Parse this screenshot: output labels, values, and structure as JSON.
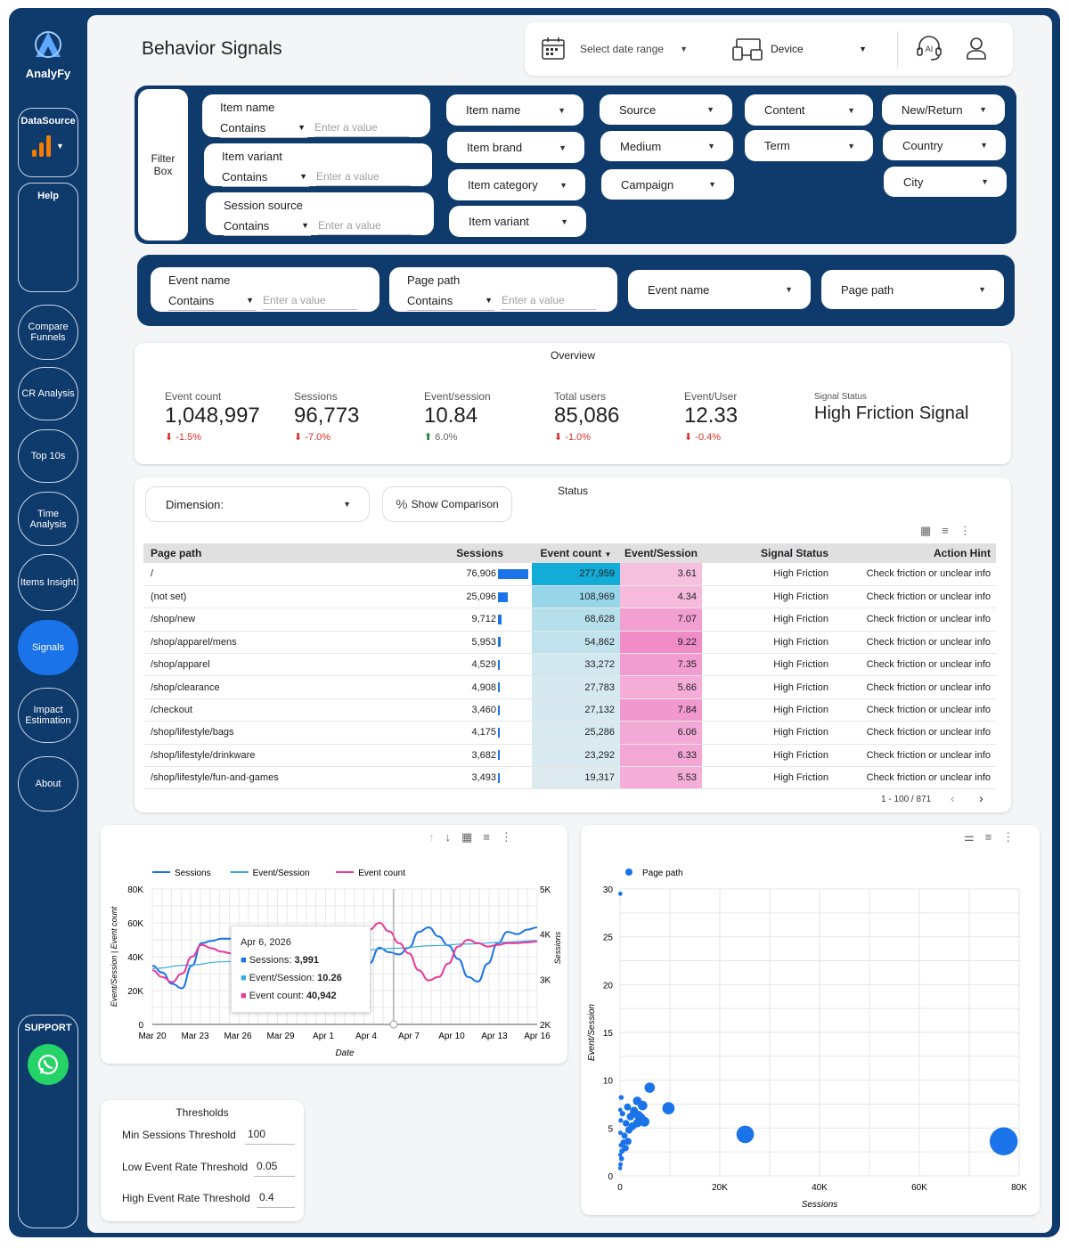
{
  "brand": {
    "name": "AnalyFy"
  },
  "page": {
    "title": "Behavior Signals"
  },
  "nav": {
    "datasource": "DataSource",
    "help": "Help",
    "items": [
      "Compare Funnels",
      "CR Analysis",
      "Top 10s",
      "Time Analysis",
      "Items Insight",
      "Signals",
      "Impact Estimation",
      "About"
    ],
    "active": "Signals",
    "support": "SUPPORT"
  },
  "topbar": {
    "date_range": "Select date range",
    "device": "Device",
    "ai_label": "AI"
  },
  "filters": {
    "box_label": "Filter Box",
    "text_filters": [
      {
        "label": "Item name",
        "op": "Contains",
        "placeholder": "Enter a value"
      },
      {
        "label": "Item variant",
        "op": "Contains",
        "placeholder": "Enter a value"
      },
      {
        "label": "Session source",
        "op": "Contains",
        "placeholder": "Enter a value"
      }
    ],
    "col1": [
      "Item name",
      "Item brand",
      "Item category",
      "Item variant"
    ],
    "col2": [
      "Source",
      "Medium",
      "Campaign"
    ],
    "col3": [
      "Content",
      "Term"
    ],
    "col4": [
      "New/Return",
      "Country",
      "City"
    ]
  },
  "event_filters": {
    "text_filters": [
      {
        "label": "Event name",
        "op": "Contains",
        "placeholder": "Enter a value"
      },
      {
        "label": "Page path",
        "op": "Contains",
        "placeholder": "Enter a value"
      }
    ],
    "dropdowns": [
      "Event name",
      "Page path"
    ]
  },
  "overview": {
    "title": "Overview",
    "kpis": [
      {
        "label": "Event count",
        "value": "1,048,997",
        "delta": "-1.5%",
        "dir": "down"
      },
      {
        "label": "Sessions",
        "value": "96,773",
        "delta": "-7.0%",
        "dir": "down"
      },
      {
        "label": "Event/session",
        "value": "10.84",
        "delta": "6.0%",
        "dir": "up"
      },
      {
        "label": "Total users",
        "value": "85,086",
        "delta": "-1.0%",
        "dir": "down"
      },
      {
        "label": "Event/User",
        "value": "12.33",
        "delta": "-0.4%",
        "dir": "down"
      }
    ],
    "signal_label": "Signal Status",
    "signal_value": "High Friction Signal"
  },
  "status": {
    "title": "Status",
    "dimension_label": "Dimension:",
    "compare_label": "Show Comparison",
    "columns": [
      "Page path",
      "Sessions",
      "Event count",
      "Event/Session",
      "Signal Status",
      "Action Hint"
    ],
    "sort_indicator": "▼",
    "rows": [
      {
        "path": "/",
        "sessions": 76906,
        "sessions_text": "76,906",
        "events": 277959,
        "events_text": "277,959",
        "eps": 3.61,
        "eps_text": "3.61",
        "status": "High Friction",
        "hint": "Check friction or unclear info"
      },
      {
        "path": "(not set)",
        "sessions": 25096,
        "sessions_text": "25,096",
        "events": 108969,
        "events_text": "108,969",
        "eps": 4.34,
        "eps_text": "4.34",
        "status": "High Friction",
        "hint": "Check friction or unclear info"
      },
      {
        "path": "/shop/new",
        "sessions": 9712,
        "sessions_text": "9,712",
        "events": 68628,
        "events_text": "68,628",
        "eps": 7.07,
        "eps_text": "7.07",
        "status": "High Friction",
        "hint": "Check friction or unclear info"
      },
      {
        "path": "/shop/apparel/mens",
        "sessions": 5953,
        "sessions_text": "5,953",
        "events": 54862,
        "events_text": "54,862",
        "eps": 9.22,
        "eps_text": "9.22",
        "status": "High Friction",
        "hint": "Check friction or unclear info"
      },
      {
        "path": "/shop/apparel",
        "sessions": 4529,
        "sessions_text": "4,529",
        "events": 33272,
        "events_text": "33,272",
        "eps": 7.35,
        "eps_text": "7.35",
        "status": "High Friction",
        "hint": "Check friction or unclear info"
      },
      {
        "path": "/shop/clearance",
        "sessions": 4908,
        "sessions_text": "4,908",
        "events": 27783,
        "events_text": "27,783",
        "eps": 5.66,
        "eps_text": "5.66",
        "status": "High Friction",
        "hint": "Check friction or unclear info"
      },
      {
        "path": "/checkout",
        "sessions": 3460,
        "sessions_text": "3,460",
        "events": 27132,
        "events_text": "27,132",
        "eps": 7.84,
        "eps_text": "7.84",
        "status": "High Friction",
        "hint": "Check friction or unclear info"
      },
      {
        "path": "/shop/lifestyle/bags",
        "sessions": 4175,
        "sessions_text": "4,175",
        "events": 25286,
        "events_text": "25,286",
        "eps": 6.06,
        "eps_text": "6.06",
        "status": "High Friction",
        "hint": "Check friction or unclear info"
      },
      {
        "path": "/shop/lifestyle/drinkware",
        "sessions": 3682,
        "sessions_text": "3,682",
        "events": 23292,
        "events_text": "23,292",
        "eps": 6.33,
        "eps_text": "6.33",
        "status": "High Friction",
        "hint": "Check friction or unclear info"
      },
      {
        "path": "/shop/lifestyle/fun-and-games",
        "sessions": 3493,
        "sessions_text": "3,493",
        "events": 19317,
        "events_text": "19,317",
        "eps": 5.53,
        "eps_text": "5.53",
        "status": "High Friction",
        "hint": "Check friction or unclear info"
      }
    ],
    "pagination": "1 - 100 / 871"
  },
  "chart_data": [
    {
      "type": "line",
      "series": [
        {
          "name": "Sessions",
          "axis": "right",
          "values": [
            3300,
            3150,
            2900,
            2800,
            3300,
            3800,
            3850,
            3900,
            3900,
            3950,
            3200,
            3050,
            3100,
            3000,
            3400,
            3650,
            4000,
            4150,
            3900,
            3650,
            3250,
            3050,
            3350,
            3700,
            3600,
            3550,
            3700,
            4050,
            4150,
            3950,
            3750,
            3450,
            3050,
            2950,
            3350,
            3800,
            4050,
            4000,
            4100,
            4150
          ]
        },
        {
          "name": "Event/Session",
          "axis": "left",
          "values": [
            33000,
            35000,
            37000,
            39000,
            41000,
            43000,
            44000,
            45000,
            46500,
            47500,
            48500,
            49500
          ]
        },
        {
          "name": "Event count",
          "axis": "left",
          "values": [
            32000,
            28000,
            25000,
            30000,
            40000,
            47000,
            45000,
            43000,
            42000,
            42000,
            43000,
            44000,
            45000,
            38000,
            27000,
            26000,
            30000,
            36000,
            42000,
            42000,
            41000,
            48000,
            56000,
            60000,
            55000,
            48000,
            42000,
            32000,
            26000,
            28000,
            36000,
            46000,
            50000,
            48000,
            46000,
            47000,
            48000,
            48000,
            48500,
            49000
          ]
        }
      ],
      "x_ticks": [
        "Mar 20",
        "Mar 23",
        "Mar 26",
        "Mar 29",
        "Apr 1",
        "Apr 4",
        "Apr 7",
        "Apr 10",
        "Apr 13",
        "Apr 16"
      ],
      "y_left_ticks": [
        "0",
        "20K",
        "40K",
        "60K",
        "80K"
      ],
      "y_right_ticks": [
        "2K",
        "3K",
        "4K",
        "5K"
      ],
      "ylim_left": [
        0,
        80000
      ],
      "ylim_right": [
        2000,
        5000
      ],
      "xlabel": "Date",
      "ylabel_left": "Event/Session | Event count",
      "ylabel_right": "Sessions",
      "legend": "top-left",
      "grid": true,
      "tooltip": {
        "date": "Apr 6, 2026",
        "sessions_label": "Sessions:",
        "sessions": "3,991",
        "eps_label": "Event/Session:",
        "eps": "10.26",
        "events_label": "Event count:",
        "events": "40,942"
      }
    },
    {
      "type": "scatter",
      "series": [
        {
          "name": "Page path",
          "points": [
            {
              "x": 76906,
              "y": 3.61
            },
            {
              "x": 25096,
              "y": 4.34
            },
            {
              "x": 9712,
              "y": 7.07
            },
            {
              "x": 5953,
              "y": 9.22
            },
            {
              "x": 4529,
              "y": 7.35
            },
            {
              "x": 4908,
              "y": 5.66
            },
            {
              "x": 3460,
              "y": 7.84
            },
            {
              "x": 4175,
              "y": 6.06
            },
            {
              "x": 3682,
              "y": 6.33
            },
            {
              "x": 3493,
              "y": 5.53
            },
            {
              "x": 2800,
              "y": 6.8
            },
            {
              "x": 2500,
              "y": 5.2
            },
            {
              "x": 2100,
              "y": 6.2
            },
            {
              "x": 1800,
              "y": 4.8
            },
            {
              "x": 1500,
              "y": 7.2
            },
            {
              "x": 1200,
              "y": 5.5
            },
            {
              "x": 900,
              "y": 4.2
            },
            {
              "x": 700,
              "y": 3.5
            },
            {
              "x": 500,
              "y": 6.5
            },
            {
              "x": 400,
              "y": 2.6
            },
            {
              "x": 300,
              "y": 1.8
            },
            {
              "x": 250,
              "y": 8.2
            },
            {
              "x": 200,
              "y": 3.2
            },
            {
              "x": 150,
              "y": 5.8
            },
            {
              "x": 100,
              "y": 1.2
            },
            {
              "x": 80,
              "y": 4.5
            },
            {
              "x": 60,
              "y": 29.5
            },
            {
              "x": 50,
              "y": 6.9
            },
            {
              "x": 40,
              "y": 2.2
            },
            {
              "x": 30,
              "y": 0.8
            },
            {
              "x": 1600,
              "y": 3.6
            },
            {
              "x": 1100,
              "y": 2.9
            }
          ]
        }
      ],
      "x_ticks": [
        "0",
        "20K",
        "40K",
        "60K",
        "80K"
      ],
      "y_ticks": [
        "0",
        "5",
        "10",
        "15",
        "20",
        "25",
        "30"
      ],
      "xlim": [
        0,
        80000
      ],
      "ylim": [
        0,
        30
      ],
      "xlabel": "Sessions",
      "ylabel": "Event/Session",
      "legend": "top-left",
      "grid": true
    }
  ],
  "thresholds": {
    "title": "Thresholds",
    "items": [
      {
        "label": "Min Sessions Threshold",
        "value": "100"
      },
      {
        "label": "Low Event Rate Threshold",
        "value": "0.05"
      },
      {
        "label": "High Event Rate Threshold",
        "value": "0.4"
      }
    ]
  },
  "colors": {
    "navy": "#0e3a6c",
    "blue": "#1a73e8",
    "sessions": "#1a73e8",
    "eps": "#38a9e0",
    "events": "#e8399a",
    "up": "#5f6368",
    "down": "#d93025"
  }
}
